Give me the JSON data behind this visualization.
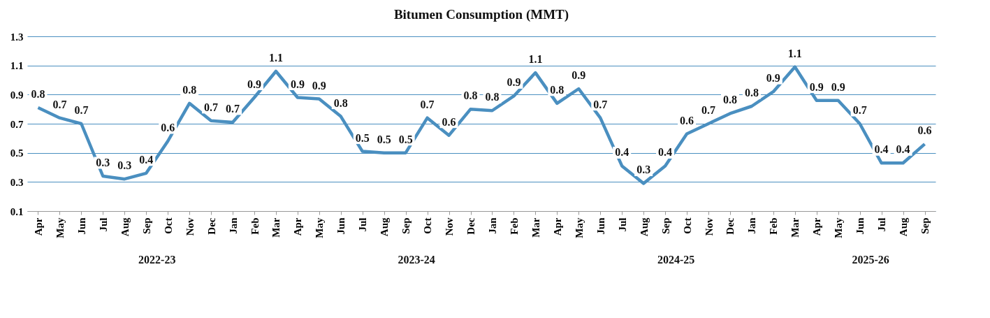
{
  "chart_data": {
    "type": "line",
    "title": "Bitumen Consumption (MMT)",
    "categories": [
      "Apr",
      "May",
      "Jun",
      "Jul",
      "Aug",
      "Sep",
      "Oct",
      "Nov",
      "Dec",
      "Jan",
      "Feb",
      "Mar",
      "Apr",
      "May",
      "Jun",
      "Jul",
      "Aug",
      "Sep",
      "Oct",
      "Nov",
      "Dec",
      "Jan",
      "Feb",
      "Mar",
      "Apr",
      "May",
      "Jun",
      "Jul",
      "Aug",
      "Sep",
      "Oct",
      "Nov",
      "Dec",
      "Jan",
      "Feb",
      "Mar",
      "Apr",
      "May",
      "Jun",
      "Jul",
      "Aug",
      "Sep"
    ],
    "series": [
      {
        "color": "#4a8fc0",
        "values": [
          0.81,
          0.74,
          0.7,
          0.34,
          0.32,
          0.36,
          0.58,
          0.84,
          0.72,
          0.71,
          0.88,
          1.06,
          0.88,
          0.87,
          0.75,
          0.51,
          0.5,
          0.5,
          0.74,
          0.62,
          0.8,
          0.79,
          0.89,
          1.05,
          0.84,
          0.94,
          0.74,
          0.41,
          0.29,
          0.41,
          0.63,
          0.7,
          0.77,
          0.82,
          0.92,
          1.09,
          0.86,
          0.86,
          0.7,
          0.43,
          0.43,
          0.56
        ],
        "value_labels": [
          "0.8",
          "0.7",
          "0.7",
          "0.3",
          "0.3",
          "0.4",
          "0.6",
          "0.8",
          "0.7",
          "0.7",
          "0.9",
          "1.1",
          "0.9",
          "0.9",
          "0.8",
          "0.5",
          "0.5",
          "0.5",
          "0.7",
          "0.6",
          "0.8",
          "0.8",
          "0.9",
          "1.1",
          "0.8",
          "0.9",
          "0.7",
          "0.4",
          "0.3",
          "0.4",
          "0.6",
          "0.7",
          "0.8",
          "0.8",
          "0.9",
          "1.1",
          "0.9",
          "0.9",
          "0.7",
          "0.4",
          "0.4",
          "0.6"
        ]
      }
    ],
    "annotations": [
      "2022-23",
      "2023-24",
      "2024-25",
      "2025-26"
    ],
    "ylim": [
      0.1,
      1.3
    ],
    "yticks": [
      0.1,
      0.3,
      0.5,
      0.7,
      0.9,
      1.1,
      1.3
    ],
    "grid": "y",
    "marker": "none",
    "line_style": "solid"
  }
}
